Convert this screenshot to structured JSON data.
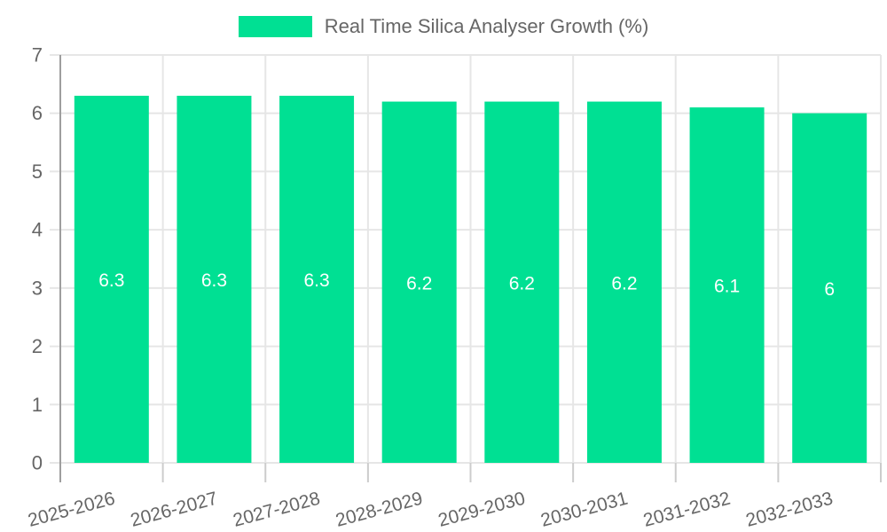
{
  "chart_data": {
    "type": "bar",
    "title": "Real Time Silica Analyser Growth (%)",
    "categories": [
      "2025-2026",
      "2026-2027",
      "2027-2028",
      "2028-2029",
      "2029-2030",
      "2030-2031",
      "2031-2032",
      "2032-2033"
    ],
    "values": [
      6.3,
      6.3,
      6.3,
      6.2,
      6.2,
      6.2,
      6.1,
      6
    ],
    "value_labels": [
      "6.3",
      "6.3",
      "6.3",
      "6.2",
      "6.2",
      "6.2",
      "6.1",
      "6"
    ],
    "xlabel": "",
    "ylabel": "",
    "ylim": [
      0,
      7
    ],
    "y_ticks": [
      0,
      1,
      2,
      3,
      4,
      5,
      6,
      7
    ],
    "grid": true,
    "legend_position": "top",
    "x_tick_rotation_deg": -15,
    "colors": {
      "bar": "#00e093",
      "bar_label": "#ffffff",
      "grid": "#e6e6e6",
      "axis": "#9e9e9e",
      "tick": "#cccccc",
      "tick_label": "#666666",
      "legend_text": "#666666",
      "background": "#ffffff"
    }
  }
}
